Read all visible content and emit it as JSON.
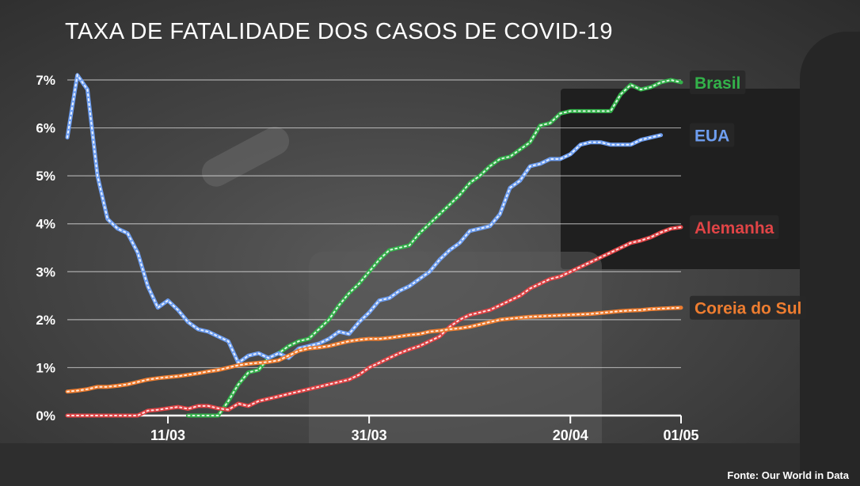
{
  "chart_data": {
    "type": "line",
    "title": "TAXA DE FATALIDADE DOS CASOS DE COVID-19",
    "source": "Fonte: Our World in Data",
    "x_start": "2020-03-01",
    "x_end": "2020-05-01",
    "x_ticks": [
      {
        "date": "2020-03-11",
        "label": "11/03"
      },
      {
        "date": "2020-03-31",
        "label": "31/03"
      },
      {
        "date": "2020-04-20",
        "label": "20/04"
      },
      {
        "date": "2020-05-01",
        "label": "01/05"
      }
    ],
    "ylim": [
      0,
      7
    ],
    "y_ticks": [
      0,
      1,
      2,
      3,
      4,
      5,
      6,
      7
    ],
    "y_tick_labels": [
      "0%",
      "1%",
      "2%",
      "3%",
      "4%",
      "5%",
      "6%",
      "7%"
    ],
    "grid": "horizontal",
    "series": [
      {
        "name": "Brasil",
        "color": "#33b24a",
        "points": [
          [
            "2020-03-13",
            0.0
          ],
          [
            "2020-03-16",
            0.0
          ],
          [
            "2020-03-17",
            0.3
          ],
          [
            "2020-03-18",
            0.65
          ],
          [
            "2020-03-19",
            0.9
          ],
          [
            "2020-03-20",
            0.95
          ],
          [
            "2020-03-21",
            1.2
          ],
          [
            "2020-03-22",
            1.3
          ],
          [
            "2020-03-23",
            1.45
          ],
          [
            "2020-03-24",
            1.55
          ],
          [
            "2020-03-25",
            1.6
          ],
          [
            "2020-03-26",
            1.8
          ],
          [
            "2020-03-27",
            2.0
          ],
          [
            "2020-03-28",
            2.3
          ],
          [
            "2020-03-29",
            2.55
          ],
          [
            "2020-03-30",
            2.75
          ],
          [
            "2020-03-31",
            3.0
          ],
          [
            "2020-04-01",
            3.25
          ],
          [
            "2020-04-02",
            3.45
          ],
          [
            "2020-04-03",
            3.5
          ],
          [
            "2020-04-04",
            3.55
          ],
          [
            "2020-04-05",
            3.8
          ],
          [
            "2020-04-06",
            4.0
          ],
          [
            "2020-04-07",
            4.2
          ],
          [
            "2020-04-08",
            4.4
          ],
          [
            "2020-04-09",
            4.6
          ],
          [
            "2020-04-10",
            4.85
          ],
          [
            "2020-04-11",
            5.0
          ],
          [
            "2020-04-12",
            5.2
          ],
          [
            "2020-04-13",
            5.35
          ],
          [
            "2020-04-14",
            5.4
          ],
          [
            "2020-04-15",
            5.55
          ],
          [
            "2020-04-16",
            5.7
          ],
          [
            "2020-04-17",
            6.05
          ],
          [
            "2020-04-18",
            6.1
          ],
          [
            "2020-04-19",
            6.3
          ],
          [
            "2020-04-20",
            6.35
          ],
          [
            "2020-04-21",
            6.35
          ],
          [
            "2020-04-22",
            6.35
          ],
          [
            "2020-04-23",
            6.35
          ],
          [
            "2020-04-24",
            6.35
          ],
          [
            "2020-04-25",
            6.7
          ],
          [
            "2020-04-26",
            6.9
          ],
          [
            "2020-04-27",
            6.8
          ],
          [
            "2020-04-28",
            6.85
          ],
          [
            "2020-04-29",
            6.95
          ],
          [
            "2020-04-30",
            7.0
          ],
          [
            "2020-05-01",
            6.95
          ]
        ]
      },
      {
        "name": "EUA",
        "color": "#6e9ef0",
        "points": [
          [
            "2020-03-01",
            5.8
          ],
          [
            "2020-03-02",
            7.1
          ],
          [
            "2020-03-03",
            6.8
          ],
          [
            "2020-03-04",
            5.0
          ],
          [
            "2020-03-05",
            4.1
          ],
          [
            "2020-03-06",
            3.9
          ],
          [
            "2020-03-07",
            3.8
          ],
          [
            "2020-03-08",
            3.4
          ],
          [
            "2020-03-09",
            2.7
          ],
          [
            "2020-03-10",
            2.25
          ],
          [
            "2020-03-11",
            2.4
          ],
          [
            "2020-03-12",
            2.2
          ],
          [
            "2020-03-13",
            1.95
          ],
          [
            "2020-03-14",
            1.8
          ],
          [
            "2020-03-15",
            1.75
          ],
          [
            "2020-03-16",
            1.65
          ],
          [
            "2020-03-17",
            1.55
          ],
          [
            "2020-03-18",
            1.1
          ],
          [
            "2020-03-19",
            1.25
          ],
          [
            "2020-03-20",
            1.3
          ],
          [
            "2020-03-21",
            1.2
          ],
          [
            "2020-03-22",
            1.3
          ],
          [
            "2020-03-23",
            1.2
          ],
          [
            "2020-03-24",
            1.4
          ],
          [
            "2020-03-25",
            1.45
          ],
          [
            "2020-03-26",
            1.5
          ],
          [
            "2020-03-27",
            1.6
          ],
          [
            "2020-03-28",
            1.75
          ],
          [
            "2020-03-29",
            1.7
          ],
          [
            "2020-03-30",
            1.95
          ],
          [
            "2020-03-31",
            2.15
          ],
          [
            "2020-04-01",
            2.4
          ],
          [
            "2020-04-02",
            2.45
          ],
          [
            "2020-04-03",
            2.6
          ],
          [
            "2020-04-04",
            2.7
          ],
          [
            "2020-04-05",
            2.85
          ],
          [
            "2020-04-06",
            3.0
          ],
          [
            "2020-04-07",
            3.25
          ],
          [
            "2020-04-08",
            3.45
          ],
          [
            "2020-04-09",
            3.6
          ],
          [
            "2020-04-10",
            3.85
          ],
          [
            "2020-04-11",
            3.9
          ],
          [
            "2020-04-12",
            3.95
          ],
          [
            "2020-04-13",
            4.2
          ],
          [
            "2020-04-14",
            4.75
          ],
          [
            "2020-04-15",
            4.9
          ],
          [
            "2020-04-16",
            5.2
          ],
          [
            "2020-04-17",
            5.25
          ],
          [
            "2020-04-18",
            5.35
          ],
          [
            "2020-04-19",
            5.35
          ],
          [
            "2020-04-20",
            5.45
          ],
          [
            "2020-04-21",
            5.65
          ],
          [
            "2020-04-22",
            5.7
          ],
          [
            "2020-04-23",
            5.7
          ],
          [
            "2020-04-24",
            5.65
          ],
          [
            "2020-04-25",
            5.65
          ],
          [
            "2020-04-26",
            5.65
          ],
          [
            "2020-04-27",
            5.75
          ],
          [
            "2020-04-28",
            5.8
          ],
          [
            "2020-04-29",
            5.85
          ]
        ]
      },
      {
        "name": "Alemanha",
        "color": "#e04446",
        "points": [
          [
            "2020-03-01",
            0.0
          ],
          [
            "2020-03-05",
            0.0
          ],
          [
            "2020-03-08",
            0.0
          ],
          [
            "2020-03-09",
            0.1
          ],
          [
            "2020-03-10",
            0.12
          ],
          [
            "2020-03-11",
            0.15
          ],
          [
            "2020-03-12",
            0.18
          ],
          [
            "2020-03-13",
            0.14
          ],
          [
            "2020-03-14",
            0.2
          ],
          [
            "2020-03-15",
            0.2
          ],
          [
            "2020-03-16",
            0.15
          ],
          [
            "2020-03-17",
            0.12
          ],
          [
            "2020-03-18",
            0.25
          ],
          [
            "2020-03-19",
            0.2
          ],
          [
            "2020-03-20",
            0.3
          ],
          [
            "2020-03-21",
            0.35
          ],
          [
            "2020-03-22",
            0.4
          ],
          [
            "2020-03-23",
            0.45
          ],
          [
            "2020-03-24",
            0.5
          ],
          [
            "2020-03-25",
            0.55
          ],
          [
            "2020-03-26",
            0.6
          ],
          [
            "2020-03-27",
            0.65
          ],
          [
            "2020-03-28",
            0.7
          ],
          [
            "2020-03-29",
            0.75
          ],
          [
            "2020-03-30",
            0.85
          ],
          [
            "2020-03-31",
            1.0
          ],
          [
            "2020-04-01",
            1.1
          ],
          [
            "2020-04-02",
            1.2
          ],
          [
            "2020-04-03",
            1.3
          ],
          [
            "2020-04-04",
            1.38
          ],
          [
            "2020-04-05",
            1.45
          ],
          [
            "2020-04-06",
            1.55
          ],
          [
            "2020-04-07",
            1.65
          ],
          [
            "2020-04-08",
            1.85
          ],
          [
            "2020-04-09",
            2.0
          ],
          [
            "2020-04-10",
            2.1
          ],
          [
            "2020-04-11",
            2.15
          ],
          [
            "2020-04-12",
            2.2
          ],
          [
            "2020-04-13",
            2.3
          ],
          [
            "2020-04-14",
            2.4
          ],
          [
            "2020-04-15",
            2.5
          ],
          [
            "2020-04-16",
            2.65
          ],
          [
            "2020-04-17",
            2.75
          ],
          [
            "2020-04-18",
            2.85
          ],
          [
            "2020-04-19",
            2.9
          ],
          [
            "2020-04-20",
            3.0
          ],
          [
            "2020-04-21",
            3.1
          ],
          [
            "2020-04-22",
            3.2
          ],
          [
            "2020-04-23",
            3.3
          ],
          [
            "2020-04-24",
            3.4
          ],
          [
            "2020-04-25",
            3.5
          ],
          [
            "2020-04-26",
            3.6
          ],
          [
            "2020-04-27",
            3.65
          ],
          [
            "2020-04-28",
            3.72
          ],
          [
            "2020-04-29",
            3.82
          ],
          [
            "2020-04-30",
            3.9
          ],
          [
            "2020-05-01",
            3.93
          ]
        ]
      },
      {
        "name": "Coreia do Sul",
        "color": "#ee7d30",
        "points": [
          [
            "2020-03-01",
            0.5
          ],
          [
            "2020-03-02",
            0.52
          ],
          [
            "2020-03-03",
            0.55
          ],
          [
            "2020-03-04",
            0.6
          ],
          [
            "2020-03-05",
            0.6
          ],
          [
            "2020-03-06",
            0.62
          ],
          [
            "2020-03-07",
            0.65
          ],
          [
            "2020-03-08",
            0.7
          ],
          [
            "2020-03-09",
            0.75
          ],
          [
            "2020-03-10",
            0.78
          ],
          [
            "2020-03-11",
            0.8
          ],
          [
            "2020-03-12",
            0.82
          ],
          [
            "2020-03-13",
            0.85
          ],
          [
            "2020-03-14",
            0.88
          ],
          [
            "2020-03-15",
            0.92
          ],
          [
            "2020-03-16",
            0.95
          ],
          [
            "2020-03-17",
            1.0
          ],
          [
            "2020-03-18",
            1.05
          ],
          [
            "2020-03-19",
            1.08
          ],
          [
            "2020-03-20",
            1.1
          ],
          [
            "2020-03-21",
            1.12
          ],
          [
            "2020-03-22",
            1.15
          ],
          [
            "2020-03-23",
            1.25
          ],
          [
            "2020-03-24",
            1.35
          ],
          [
            "2020-03-25",
            1.4
          ],
          [
            "2020-03-26",
            1.42
          ],
          [
            "2020-03-27",
            1.45
          ],
          [
            "2020-03-28",
            1.5
          ],
          [
            "2020-03-29",
            1.55
          ],
          [
            "2020-03-30",
            1.58
          ],
          [
            "2020-03-31",
            1.6
          ],
          [
            "2020-04-01",
            1.6
          ],
          [
            "2020-04-02",
            1.62
          ],
          [
            "2020-04-03",
            1.65
          ],
          [
            "2020-04-04",
            1.68
          ],
          [
            "2020-04-05",
            1.7
          ],
          [
            "2020-04-06",
            1.75
          ],
          [
            "2020-04-07",
            1.77
          ],
          [
            "2020-04-08",
            1.8
          ],
          [
            "2020-04-09",
            1.82
          ],
          [
            "2020-04-10",
            1.85
          ],
          [
            "2020-04-11",
            1.9
          ],
          [
            "2020-04-12",
            1.95
          ],
          [
            "2020-04-13",
            2.0
          ],
          [
            "2020-04-14",
            2.02
          ],
          [
            "2020-04-15",
            2.04
          ],
          [
            "2020-04-16",
            2.06
          ],
          [
            "2020-04-17",
            2.07
          ],
          [
            "2020-04-18",
            2.08
          ],
          [
            "2020-04-19",
            2.09
          ],
          [
            "2020-04-20",
            2.1
          ],
          [
            "2020-04-21",
            2.11
          ],
          [
            "2020-04-22",
            2.12
          ],
          [
            "2020-04-23",
            2.14
          ],
          [
            "2020-04-24",
            2.16
          ],
          [
            "2020-04-25",
            2.18
          ],
          [
            "2020-04-26",
            2.19
          ],
          [
            "2020-04-27",
            2.2
          ],
          [
            "2020-04-28",
            2.22
          ],
          [
            "2020-04-29",
            2.23
          ],
          [
            "2020-04-30",
            2.24
          ],
          [
            "2020-05-01",
            2.25
          ]
        ]
      }
    ]
  }
}
